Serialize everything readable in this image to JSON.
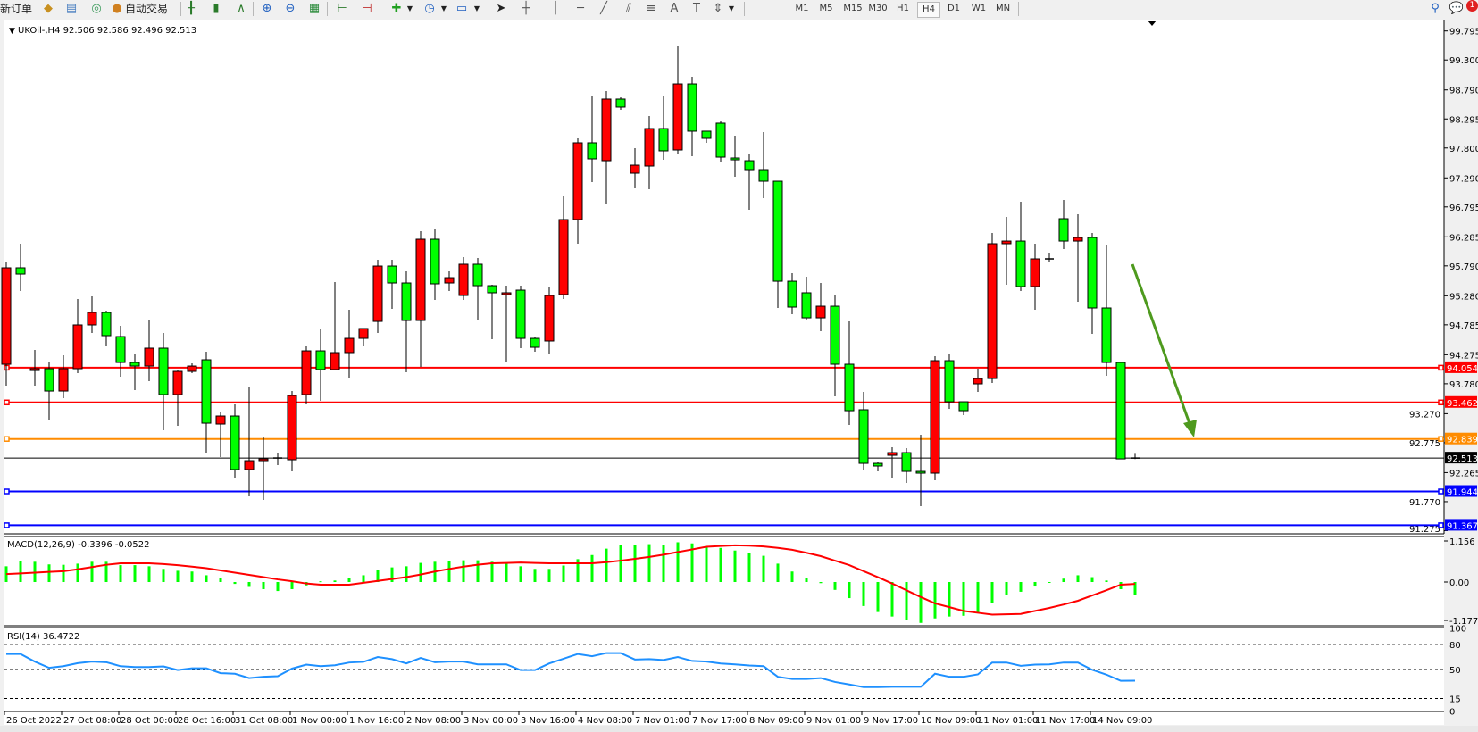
{
  "toolbar": {
    "new_order_label": "新订单",
    "auto_trading_label": "自动交易",
    "icons": [
      "market-watch-icon",
      "data-window-icon",
      "navigator-icon",
      "bar-chart-icon",
      "candlestick-chart-icon",
      "line-chart-icon",
      "zoom-in-icon",
      "zoom-out-icon",
      "tile-windows-icon",
      "auto-scroll-icon",
      "chart-shift-icon",
      "indicators-icon",
      "periods-icon",
      "templates-icon",
      "cursor-icon",
      "crosshair-icon",
      "vertical-line-icon",
      "horizontal-line-icon",
      "trend-line-icon",
      "equidistant-channel-icon",
      "fibonacci-icon",
      "text-icon",
      "text-label-icon",
      "arrows-icon"
    ],
    "timeframes": [
      "M1",
      "M5",
      "M15",
      "M30",
      "H1",
      "H4",
      "D1",
      "W1",
      "MN"
    ],
    "selected_timeframe": "H4",
    "notification_count": "1"
  },
  "chart_data": {
    "type": "candlestick",
    "symbol_header": "UKOil-,H4  92.506 92.586 92.496 92.513",
    "bull_color": "#ff0000",
    "bear_color": "#00ff00",
    "price_ticks": [
      "99.795",
      "99.300",
      "98.790",
      "98.295",
      "97.800",
      "97.290",
      "96.795",
      "96.285",
      "95.790",
      "95.280",
      "94.785",
      "94.275",
      "93.780",
      "93.270",
      "92.775",
      "92.265",
      "91.770",
      "91.275"
    ],
    "ylim": [
      91.275,
      99.795
    ],
    "time_labels": [
      {
        "index": 0,
        "label": "26 Oct 2022"
      },
      {
        "index": 4,
        "label": "27 Oct 08:00"
      },
      {
        "index": 8,
        "label": "28 Oct 00:00"
      },
      {
        "index": 12,
        "label": "28 Oct 16:00"
      },
      {
        "index": 16,
        "label": "31 Oct 08:00"
      },
      {
        "index": 20,
        "label": "1 Nov 00:00"
      },
      {
        "index": 24,
        "label": "1 Nov 16:00"
      },
      {
        "index": 28,
        "label": "2 Nov 08:00"
      },
      {
        "index": 32,
        "label": "3 Nov 00:00"
      },
      {
        "index": 36,
        "label": "3 Nov 16:00"
      },
      {
        "index": 40,
        "label": "4 Nov 08:00"
      },
      {
        "index": 44,
        "label": "7 Nov 01:00"
      },
      {
        "index": 48,
        "label": "7 Nov 17:00"
      },
      {
        "index": 52,
        "label": "8 Nov 09:00"
      },
      {
        "index": 56,
        "label": "9 Nov 01:00"
      },
      {
        "index": 60,
        "label": "9 Nov 17:00"
      },
      {
        "index": 64,
        "label": "10 Nov 09:00"
      },
      {
        "index": 68,
        "label": "11 Nov 01:00"
      },
      {
        "index": 72,
        "label": "11 Nov 17:00"
      },
      {
        "index": 76,
        "label": "14 Nov 09:00"
      }
    ],
    "ohlc": [
      [
        94.113,
        95.848,
        93.748,
        95.757
      ],
      [
        95.757,
        96.168,
        95.361,
        95.65
      ],
      [
        94.006,
        94.356,
        93.748,
        94.037
      ],
      [
        94.037,
        94.158,
        93.154,
        93.656
      ],
      [
        93.656,
        94.265,
        93.534,
        94.037
      ],
      [
        94.037,
        95.224,
        93.961,
        94.783
      ],
      [
        94.783,
        95.27,
        94.646,
        94.996
      ],
      [
        94.996,
        95.026,
        94.417,
        94.6
      ],
      [
        94.585,
        94.767,
        93.9,
        94.143
      ],
      [
        94.143,
        94.28,
        93.671,
        94.082
      ],
      [
        94.082,
        94.874,
        93.824,
        94.387
      ],
      [
        94.387,
        94.646,
        92.986,
        93.595
      ],
      [
        93.595,
        94.022,
        93.063,
        93.991
      ],
      [
        93.991,
        94.128,
        93.961,
        94.082
      ],
      [
        94.189,
        94.326,
        92.591,
        93.108
      ],
      [
        93.093,
        93.306,
        92.53,
        93.23
      ],
      [
        93.23,
        93.428,
        92.165,
        92.317
      ],
      [
        92.317,
        93.717,
        91.86,
        92.469
      ],
      [
        92.469,
        92.88,
        91.799,
        92.499
      ],
      [
        92.514,
        92.591,
        92.393,
        92.514
      ],
      [
        92.484,
        93.656,
        92.286,
        93.58
      ],
      [
        93.595,
        94.417,
        93.428,
        94.341
      ],
      [
        94.341,
        94.707,
        93.489,
        94.022
      ],
      [
        94.022,
        95.513,
        94.022,
        94.311
      ],
      [
        94.311,
        95.041,
        93.869,
        94.554
      ],
      [
        94.554,
        94.722,
        94.417,
        94.722
      ],
      [
        94.843,
        95.894,
        94.646,
        95.787
      ],
      [
        95.787,
        95.894,
        95.057,
        95.498
      ],
      [
        95.498,
        95.696,
        93.976,
        94.859
      ],
      [
        94.859,
        96.381,
        94.067,
        96.244
      ],
      [
        96.244,
        96.426,
        95.209,
        95.483
      ],
      [
        95.498,
        95.696,
        95.361,
        95.589
      ],
      [
        95.285,
        95.94,
        95.209,
        95.818
      ],
      [
        95.818,
        95.924,
        94.874,
        95.452
      ],
      [
        95.452,
        95.467,
        94.539,
        95.331
      ],
      [
        95.3,
        95.452,
        94.158,
        95.331
      ],
      [
        95.376,
        95.452,
        94.387,
        94.554
      ],
      [
        94.554,
        94.57,
        94.326,
        94.402
      ],
      [
        94.509,
        95.437,
        94.28,
        95.285
      ],
      [
        95.3,
        96.974,
        95.224,
        96.579
      ],
      [
        96.579,
        97.964,
        96.168,
        97.888
      ],
      [
        97.888,
        98.679,
        97.218,
        97.614
      ],
      [
        97.583,
        98.77,
        96.853,
        98.634
      ],
      [
        98.634,
        98.664,
        98.451,
        98.497
      ],
      [
        97.37,
        97.796,
        97.111,
        97.507
      ],
      [
        97.492,
        98.344,
        97.096,
        98.131
      ],
      [
        98.131,
        98.694,
        97.598,
        97.751
      ],
      [
        97.766,
        99.532,
        97.69,
        98.892
      ],
      [
        98.892,
        99.014,
        97.659,
        98.086
      ],
      [
        98.086,
        98.086,
        97.888,
        97.964
      ],
      [
        98.223,
        98.268,
        97.553,
        97.644
      ],
      [
        97.629,
        98.009,
        97.309,
        97.598
      ],
      [
        97.583,
        97.705,
        96.746,
        97.431
      ],
      [
        97.431,
        98.07,
        96.944,
        97.233
      ],
      [
        97.233,
        97.233,
        95.072,
        95.528
      ],
      [
        95.528,
        95.665,
        94.965,
        95.087
      ],
      [
        95.331,
        95.605,
        94.874,
        94.904
      ],
      [
        94.904,
        95.498,
        94.676,
        95.102
      ],
      [
        95.102,
        95.3,
        93.565,
        94.113
      ],
      [
        94.113,
        94.843,
        93.078,
        93.321
      ],
      [
        93.337,
        93.641,
        92.317,
        92.423
      ],
      [
        92.423,
        92.454,
        92.286,
        92.378
      ],
      [
        92.56,
        92.697,
        92.18,
        92.606
      ],
      [
        92.606,
        92.682,
        92.088,
        92.286
      ],
      [
        92.286,
        92.91,
        91.693,
        92.256
      ],
      [
        92.256,
        94.25,
        92.134,
        94.174
      ],
      [
        94.174,
        94.28,
        93.352,
        93.473
      ],
      [
        93.473,
        93.473,
        93.245,
        93.321
      ],
      [
        93.778,
        94.037,
        93.641,
        93.869
      ],
      [
        93.869,
        96.35,
        93.793,
        96.168
      ],
      [
        96.168,
        96.624,
        95.467,
        96.213
      ],
      [
        96.213,
        96.883,
        95.361,
        95.437
      ],
      [
        95.437,
        96.168,
        95.041,
        95.909
      ],
      [
        95.909,
        96.015,
        95.848,
        95.909
      ],
      [
        96.594,
        96.913,
        96.076,
        96.213
      ],
      [
        96.213,
        96.67,
        95.178,
        96.274
      ],
      [
        96.274,
        96.35,
        94.63,
        95.072
      ],
      [
        95.072,
        96.137,
        93.915,
        94.143
      ],
      [
        94.143,
        94.143,
        92.499,
        92.499
      ],
      [
        92.506,
        92.586,
        92.496,
        92.513
      ]
    ],
    "levels": [
      {
        "price": "94.054",
        "color": "#ff0000"
      },
      {
        "price": "93.462",
        "color": "#ff0000"
      },
      {
        "price": "92.839",
        "color": "#ff8c00"
      },
      {
        "price": "92.513",
        "color": "#000000",
        "bid": true
      },
      {
        "price": "91.944",
        "color": "#0000ff"
      },
      {
        "price": "91.367",
        "color": "#0000ff"
      }
    ],
    "arrow_color": "#4e9a1e",
    "macd": {
      "label": "MACD(12,26,9) -0.3396 -0.0522",
      "ticks": [
        "1.156",
        "0.00",
        "-1.1779"
      ],
      "ylim": [
        -1.1779,
        1.156
      ],
      "histogram_color": "#00ff00",
      "signal_color": "#ff0000",
      "histogram": [
        0.42,
        0.56,
        0.54,
        0.47,
        0.46,
        0.49,
        0.54,
        0.54,
        0.45,
        0.45,
        0.42,
        0.35,
        0.3,
        0.28,
        0.18,
        0.11,
        -0.05,
        -0.13,
        -0.19,
        -0.24,
        -0.19,
        -0.09,
        0.02,
        0.04,
        0.11,
        0.18,
        0.32,
        0.39,
        0.42,
        0.51,
        0.54,
        0.56,
        0.58,
        0.58,
        0.54,
        0.49,
        0.42,
        0.35,
        0.35,
        0.44,
        0.61,
        0.72,
        0.89,
        0.98,
        0.98,
        1.01,
        0.98,
        1.06,
        1.03,
        0.96,
        0.91,
        0.84,
        0.77,
        0.7,
        0.49,
        0.28,
        0.11,
        -0.03,
        -0.21,
        -0.43,
        -0.64,
        -0.8,
        -0.92,
        -1.02,
        -1.09,
        -0.97,
        -0.92,
        -0.9,
        -0.83,
        -0.57,
        -0.35,
        -0.26,
        -0.12,
        -0.02,
        0.09,
        0.18,
        0.13,
        0.04,
        -0.19,
        -0.34
      ],
      "signal": [
        0.21,
        0.23,
        0.25,
        0.27,
        0.29,
        0.34,
        0.4,
        0.46,
        0.5,
        0.5,
        0.5,
        0.48,
        0.45,
        0.41,
        0.37,
        0.31,
        0.25,
        0.19,
        0.13,
        0.07,
        0.02,
        -0.04,
        -0.07,
        -0.07,
        -0.07,
        -0.02,
        0.03,
        0.08,
        0.13,
        0.2,
        0.28,
        0.35,
        0.41,
        0.46,
        0.5,
        0.51,
        0.52,
        0.51,
        0.5,
        0.5,
        0.5,
        0.5,
        0.53,
        0.57,
        0.62,
        0.67,
        0.73,
        0.8,
        0.87,
        0.94,
        0.96,
        0.98,
        0.97,
        0.95,
        0.91,
        0.86,
        0.78,
        0.69,
        0.57,
        0.45,
        0.29,
        0.13,
        -0.04,
        -0.22,
        -0.4,
        -0.57,
        -0.67,
        -0.77,
        -0.82,
        -0.87,
        -0.86,
        -0.85,
        -0.77,
        -0.69,
        -0.6,
        -0.5,
        -0.36,
        -0.22,
        -0.07,
        -0.05
      ]
    },
    "rsi": {
      "label": "RSI(14) 36.4722",
      "ticks": [
        "100",
        "80",
        "50",
        "15",
        "0"
      ],
      "levels": [
        80,
        50,
        15
      ],
      "ylim": [
        0,
        100
      ],
      "color": "#1e90ff",
      "values": [
        68.7,
        68.7,
        59.5,
        52,
        54,
        57.7,
        59.5,
        58.8,
        54,
        53,
        53,
        53.7,
        49.3,
        51.5,
        51.5,
        45.6,
        44.9,
        39.7,
        41.2,
        41.9,
        51.1,
        55.9,
        54,
        55.1,
        58.4,
        59.2,
        65,
        62.5,
        57.3,
        63.9,
        58.8,
        59.5,
        59.5,
        56.2,
        56.2,
        56.2,
        49.3,
        49.3,
        57.3,
        63,
        68.7,
        66,
        69.8,
        69.8,
        62,
        62.5,
        61.4,
        65,
        60.3,
        59.5,
        57.3,
        56.2,
        54.8,
        54,
        41.2,
        38.6,
        38.6,
        39.7,
        35,
        32,
        28.8,
        28.8,
        29.1,
        29.1,
        29.1,
        44.9,
        41.2,
        41.2,
        44.1,
        58.4,
        58.4,
        54.4,
        55.9,
        56.2,
        58.4,
        58.4,
        49.6,
        43.8,
        36.4,
        36.5
      ]
    }
  }
}
